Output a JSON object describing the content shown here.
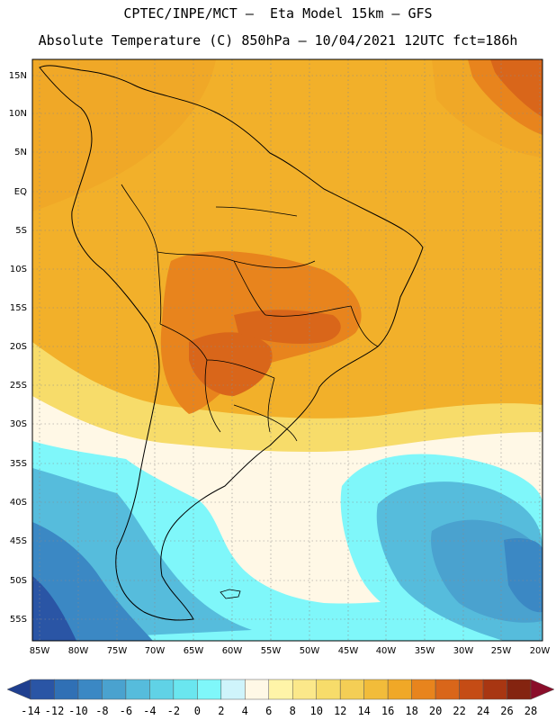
{
  "header": {
    "title_line1": "CPTEC/INPE/MCT –  Eta Model 15km – GFS",
    "title_line2": "Absolute Temperature (C) 850hPa – 10/04/2021 12UTC fct=186h"
  },
  "map": {
    "lat_labels": [
      "15N",
      "10N",
      "5N",
      "EQ",
      "5S",
      "10S",
      "15S",
      "20S",
      "25S",
      "30S",
      "35S",
      "40S",
      "45S",
      "50S",
      "55S"
    ],
    "lon_labels": [
      "85W",
      "80W",
      "75W",
      "70W",
      "65W",
      "60W",
      "55W",
      "50W",
      "45W",
      "40W",
      "35W",
      "30W",
      "25W",
      "20W"
    ]
  },
  "colorbar": {
    "tick_labels": [
      "-14",
      "-12",
      "-10",
      "-8",
      "-6",
      "-4",
      "-2",
      "0",
      "2",
      "4",
      "6",
      "8",
      "10",
      "12",
      "14",
      "16",
      "18",
      "20",
      "22",
      "24",
      "26",
      "28"
    ],
    "colors": [
      "#1f3f8f",
      "#2a55a5",
      "#3070b5",
      "#3b88c4",
      "#4aa2cf",
      "#56bcdc",
      "#60d2e6",
      "#6ae6ef",
      "#7ff7fa",
      "#cff4fb",
      "#fff8e6",
      "#fff4a8",
      "#fbe88a",
      "#f7dc6a",
      "#f4ce55",
      "#f2bc3a",
      "#f0a827",
      "#e8841d",
      "#d9661a",
      "#c54c15",
      "#a83612",
      "#842410",
      "#8a0e2a"
    ]
  }
}
